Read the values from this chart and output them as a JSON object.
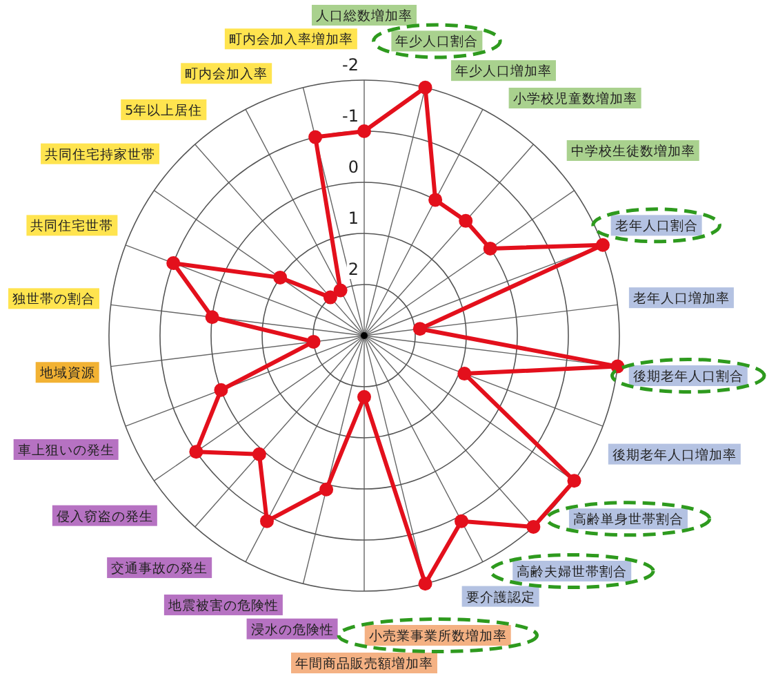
{
  "chart_data": {
    "type": "radar",
    "categories": [
      "人口総数増加率",
      "年少人口割合",
      "年少人口増加率",
      "小学校児童数増加率",
      "中学校生徒数増加率",
      "老年人口割合",
      "老年人口増加率",
      "後期老年人口割合",
      "後期老年人口増加率",
      "高齢単身世帯割合",
      "高齢夫婦世帯割合",
      "要介護認定",
      "小売業事業所数増加率",
      "年間商品販売額増加率",
      "浸水の危険性",
      "地震被害の危険性",
      "交通事故の発生",
      "侵入窃盗の発生",
      "車上狙いの発生",
      "地域資源",
      "独世帯の割合",
      "共同住宅世帯",
      "共同住宅持家世帯",
      "5年以上居住",
      "町内会加入率",
      "町内会加入率増加率"
    ],
    "ylim": [
      3,
      -2
    ],
    "yticks": [
      -2,
      -1,
      0,
      1,
      2
    ],
    "grid": true,
    "marker": "circle",
    "series": [
      {
        "color": "#e3101c",
        "values": [
          -1,
          -2,
          0,
          0,
          0,
          -2,
          1.9,
          -2,
          0.9,
          -2,
          -2,
          -1.1,
          -2,
          1.8,
          -0.1,
          -1.1,
          -0.1,
          -1,
          0,
          2,
          0,
          -1,
          1,
          2,
          2,
          -1
        ]
      }
    ]
  }
}
